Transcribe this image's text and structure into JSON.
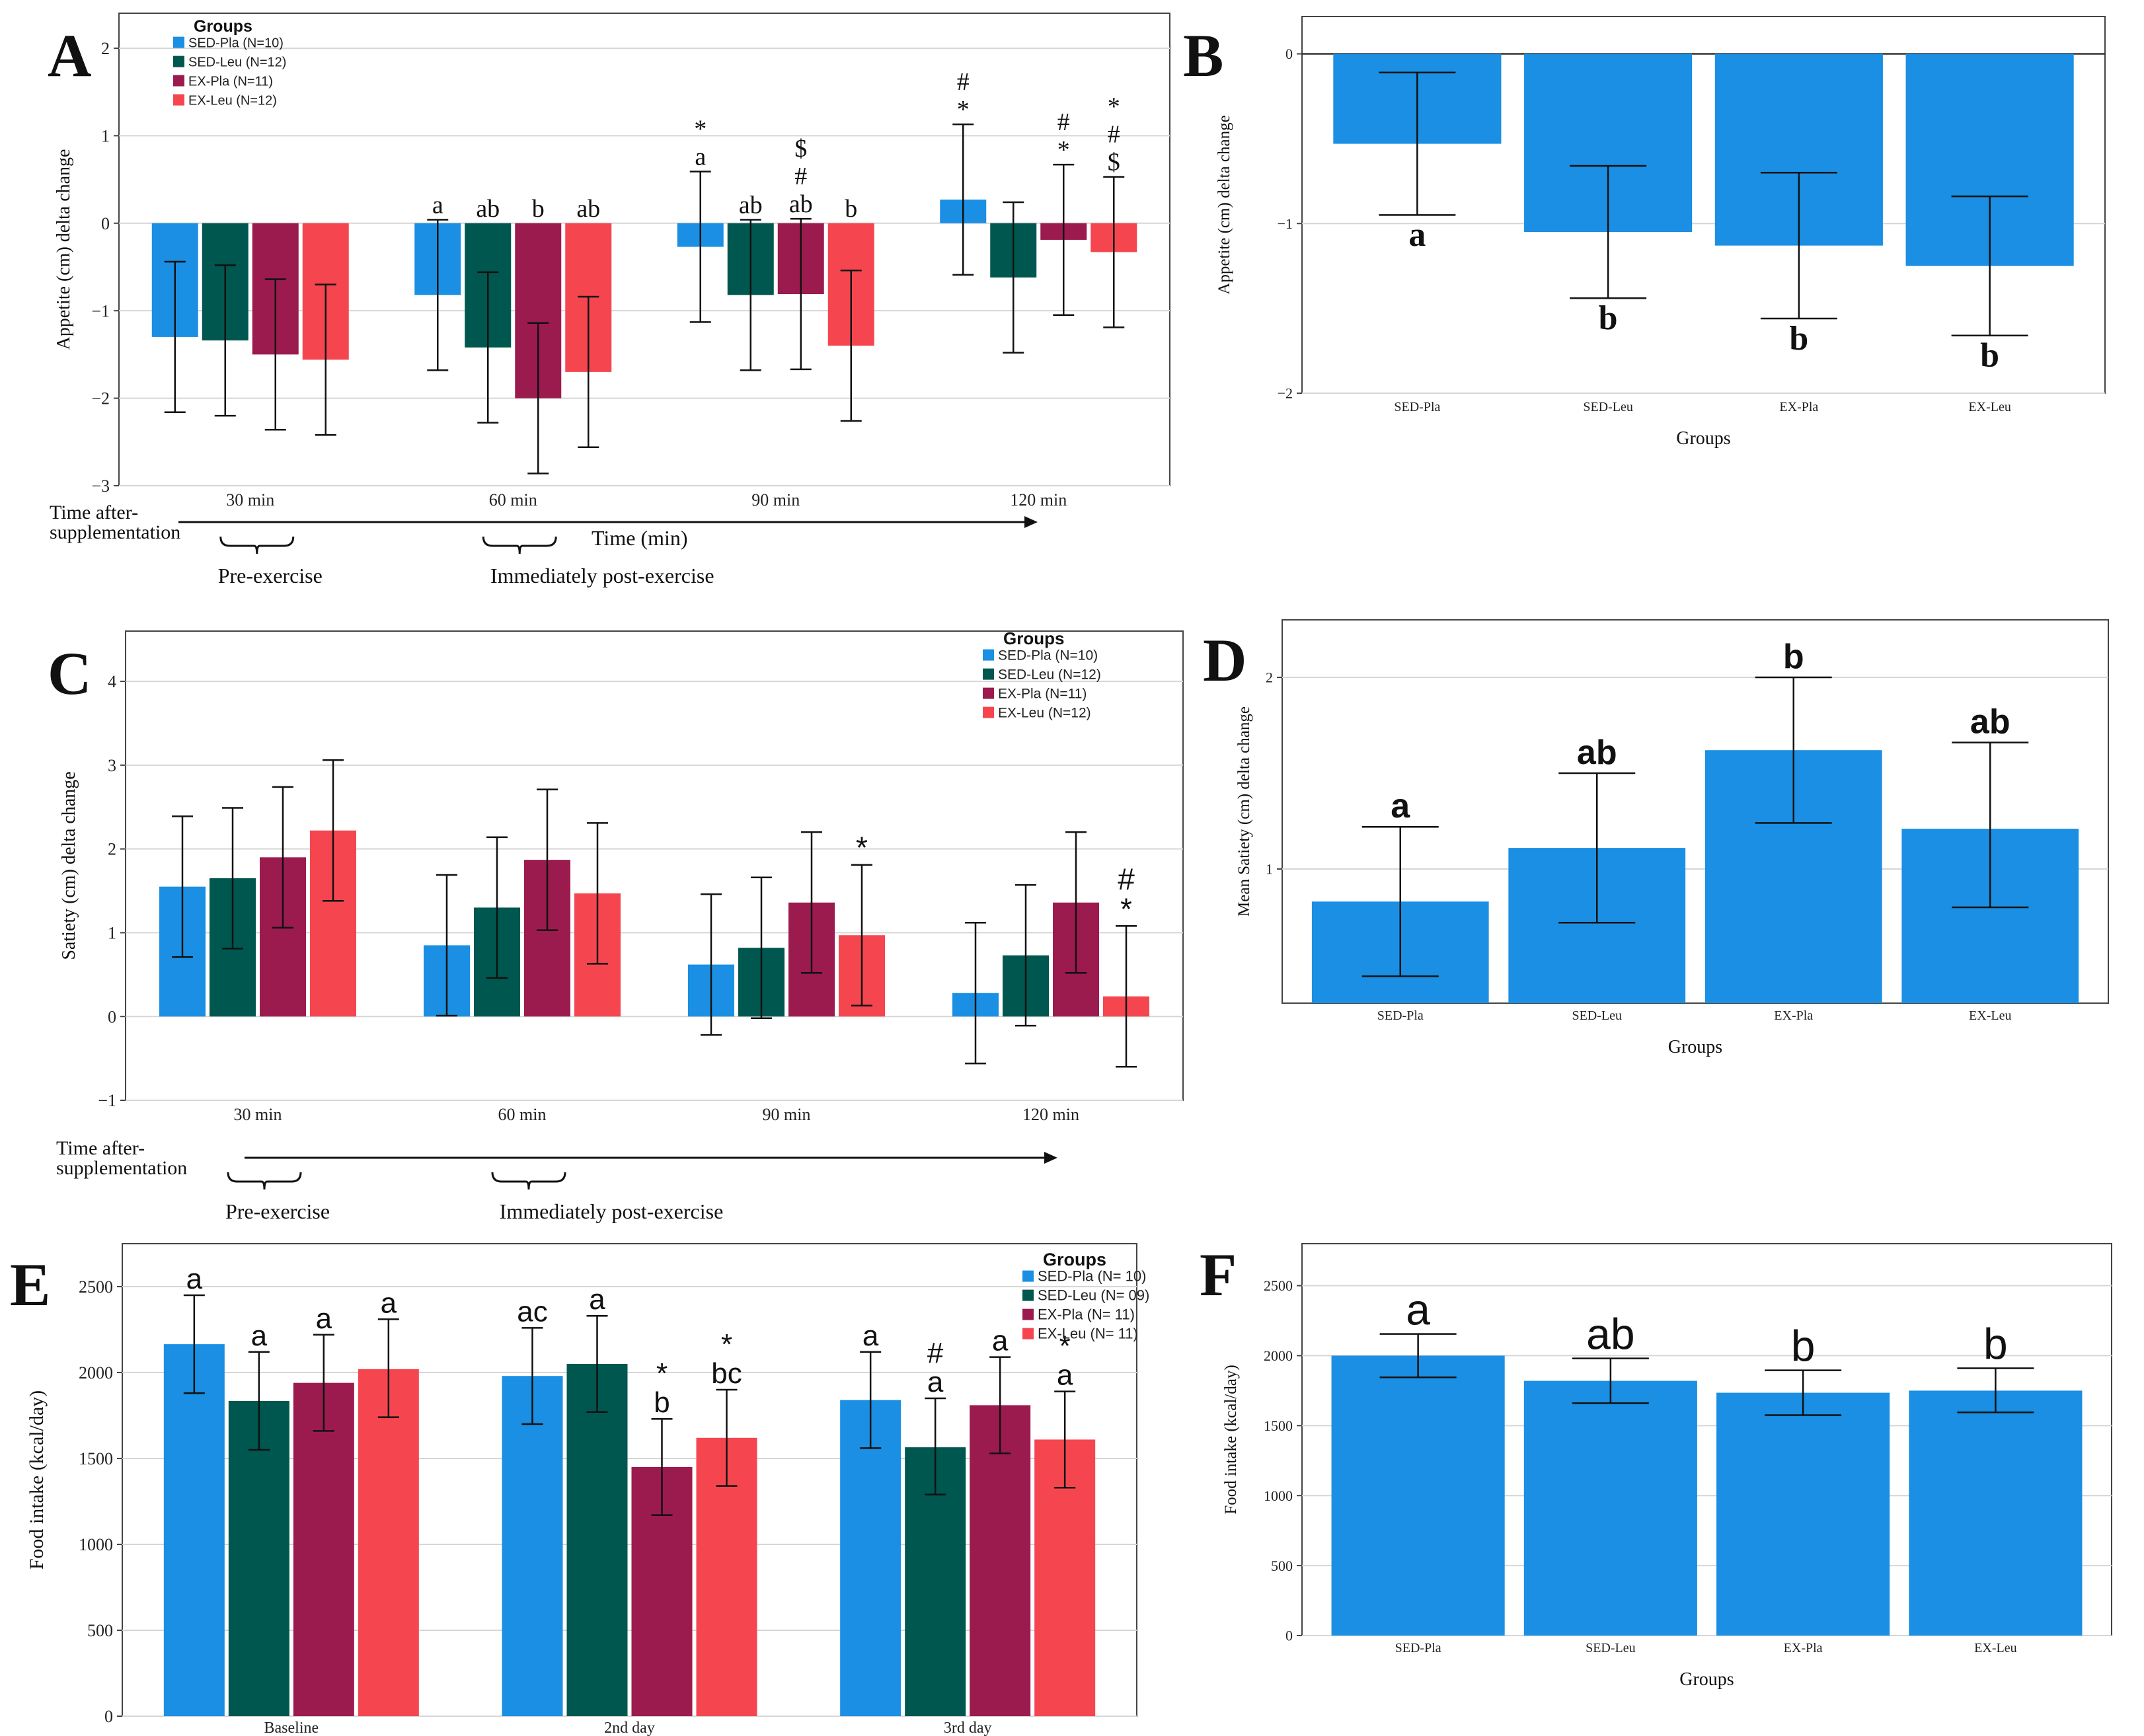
{
  "chart_data": [
    {
      "id": "A",
      "panel_letter": "A",
      "type": "bar",
      "grouped": true,
      "ylabel": "Appetite (cm) delta change",
      "ylim": [
        -3,
        2.4
      ],
      "yticks": [
        2,
        1,
        0,
        -1,
        -2,
        -3
      ],
      "ytick_labels": [
        "2",
        "1",
        "0",
        "−1",
        "−2",
        "−3"
      ],
      "categories": [
        "30 min",
        "60 min",
        "90 min",
        "120 min"
      ],
      "legend": {
        "title": "Groups",
        "position": "top-left",
        "entries": [
          "SED-Pla (N=10)",
          "SED-Leu (N=12)",
          "EX-Pla (N=11)",
          "EX-Leu (N=12)"
        ]
      },
      "series": [
        {
          "name": "SED-Pla (N=10)",
          "color": "#1a8fe3",
          "values": [
            -1.3,
            -0.82,
            -0.27,
            0.27
          ],
          "err_low": [
            -2.16,
            -1.68,
            -1.13,
            -0.59
          ],
          "err_high": [
            -0.44,
            0.04,
            0.59,
            1.13
          ]
        },
        {
          "name": "SED-Leu (N=12)",
          "color": "#00574f",
          "values": [
            -1.34,
            -1.42,
            -0.82,
            -0.62
          ],
          "err_low": [
            -2.2,
            -2.28,
            -1.68,
            -1.48
          ],
          "err_high": [
            -0.48,
            -0.56,
            0.04,
            0.24
          ]
        },
        {
          "name": "EX-Pla (N=11)",
          "color": "#9c1b4e",
          "values": [
            -1.5,
            -2.0,
            -0.81,
            -0.19
          ],
          "err_low": [
            -2.36,
            -2.86,
            -1.67,
            -1.05
          ],
          "err_high": [
            -0.64,
            -1.14,
            0.05,
            0.67
          ]
        },
        {
          "name": "EX-Leu (N=12)",
          "color": "#f5464f",
          "values": [
            -1.56,
            -1.7,
            -1.4,
            -0.33
          ],
          "err_low": [
            -2.42,
            -2.56,
            -2.26,
            -1.19
          ],
          "err_high": [
            -0.7,
            -0.84,
            -0.54,
            0.53
          ]
        }
      ],
      "annotations": [
        {
          "group": 1,
          "series": 0,
          "lines": [
            "a"
          ]
        },
        {
          "group": 1,
          "series": 1,
          "lines": [
            "ab"
          ]
        },
        {
          "group": 1,
          "series": 2,
          "lines": [
            "b"
          ]
        },
        {
          "group": 1,
          "series": 3,
          "lines": [
            "ab"
          ]
        },
        {
          "group": 2,
          "series": 0,
          "lines": [
            "*",
            "a"
          ]
        },
        {
          "group": 2,
          "series": 1,
          "lines": [
            "ab"
          ]
        },
        {
          "group": 2,
          "series": 2,
          "lines": [
            "$",
            "#",
            "ab"
          ]
        },
        {
          "group": 2,
          "series": 3,
          "lines": [
            "b"
          ]
        },
        {
          "group": 3,
          "series": 0,
          "lines": [
            "#",
            "*"
          ]
        },
        {
          "group": 3,
          "series": 2,
          "lines": [
            "#",
            "*"
          ]
        },
        {
          "group": 3,
          "series": 3,
          "lines": [
            "*",
            "#",
            "$"
          ]
        }
      ],
      "timeline": {
        "label_left": [
          "Time after-",
          "supplementation"
        ],
        "axis_label": "Time (min)",
        "phases": [
          {
            "label": "Pre-exercise",
            "group": 0
          },
          {
            "label": "Immediately post-exercise",
            "group": 1
          }
        ]
      }
    },
    {
      "id": "B",
      "panel_letter": "B",
      "type": "bar",
      "ylabel": "Appetite (cm) delta change",
      "xlabel": "Groups",
      "ylim": [
        -2,
        0.22
      ],
      "yticks": [
        0,
        -1,
        -2
      ],
      "ytick_labels": [
        "0",
        "−1",
        "−2"
      ],
      "categories": [
        "SED-Pla",
        "SED-Leu",
        "EX-Pla",
        "EX-Leu"
      ],
      "color": "#1a8fe3",
      "values": [
        -0.53,
        -1.05,
        -1.13,
        -1.25
      ],
      "err_low": [
        -0.95,
        -1.44,
        -1.56,
        -1.66
      ],
      "err_high": [
        -0.11,
        -0.66,
        -0.7,
        -0.84
      ],
      "letters": [
        "a",
        "b",
        "b",
        "b"
      ]
    },
    {
      "id": "C",
      "panel_letter": "C",
      "type": "bar",
      "grouped": true,
      "ylabel": "Satiety (cm) delta change",
      "ylim": [
        -1,
        4.6
      ],
      "yticks": [
        4,
        3,
        2,
        1,
        0,
        -1
      ],
      "ytick_labels": [
        "4",
        "3",
        "2",
        "1",
        "0",
        "−1"
      ],
      "categories": [
        "30 min",
        "60 min",
        "90 min",
        "120 min"
      ],
      "legend": {
        "title": "Groups",
        "position": "top-right",
        "entries": [
          "SED-Pla (N=10)",
          "SED-Leu (N=12)",
          "EX-Pla (N=11)",
          "EX-Leu (N=12)"
        ]
      },
      "series": [
        {
          "name": "SED-Pla (N=10)",
          "color": "#1a8fe3",
          "values": [
            1.55,
            0.85,
            0.62,
            0.28
          ],
          "err_low": [
            0.71,
            0.01,
            -0.22,
            -0.56
          ],
          "err_high": [
            2.39,
            1.69,
            1.46,
            1.12
          ]
        },
        {
          "name": "SED-Leu (N=12)",
          "color": "#00574f",
          "values": [
            1.65,
            1.3,
            0.82,
            0.73
          ],
          "err_low": [
            0.81,
            0.46,
            -0.02,
            -0.11
          ],
          "err_high": [
            2.49,
            2.14,
            1.66,
            1.57
          ]
        },
        {
          "name": "EX-Pla (N=11)",
          "color": "#9c1b4e",
          "values": [
            1.9,
            1.87,
            1.36,
            1.36
          ],
          "err_low": [
            1.06,
            1.03,
            0.52,
            0.52
          ],
          "err_high": [
            2.74,
            2.71,
            2.2,
            2.2
          ]
        },
        {
          "name": "EX-Leu (N=12)",
          "color": "#f5464f",
          "values": [
            2.22,
            1.47,
            0.97,
            0.24
          ],
          "err_low": [
            1.38,
            0.63,
            0.13,
            -0.6
          ],
          "err_high": [
            3.06,
            2.31,
            1.81,
            1.08
          ]
        }
      ],
      "annotations": [
        {
          "group": 2,
          "series": 3,
          "lines": [
            "*"
          ]
        },
        {
          "group": 3,
          "series": 3,
          "lines": [
            "#",
            "*"
          ]
        }
      ],
      "timeline": {
        "label_left": [
          "Time after-",
          "supplementation"
        ],
        "phases": [
          {
            "label": "Pre-exercise",
            "group": 0
          },
          {
            "label": "Immediately post-exercise",
            "group": 1
          }
        ]
      }
    },
    {
      "id": "D",
      "panel_letter": "D",
      "type": "bar",
      "ylabel": "Mean Satiety (cm) delta change",
      "xlabel": "Groups",
      "ylim": [
        0.3,
        2.3
      ],
      "yticks": [
        2,
        1
      ],
      "ytick_labels": [
        "2",
        "1"
      ],
      "categories": [
        "SED-Pla",
        "SED-Leu",
        "EX-Pla",
        "EX-Leu"
      ],
      "color": "#1a8fe3",
      "values": [
        0.83,
        1.11,
        1.62,
        1.21
      ],
      "err_low": [
        0.44,
        0.72,
        1.24,
        0.8
      ],
      "err_high": [
        1.22,
        1.5,
        2.0,
        1.66
      ],
      "letters": [
        "a",
        "ab",
        "b",
        "ab"
      ]
    },
    {
      "id": "E",
      "panel_letter": "E",
      "type": "bar",
      "grouped": true,
      "ylabel": "Food intake (kcal/day)",
      "ylim": [
        0,
        2750
      ],
      "yticks": [
        0,
        500,
        1000,
        1500,
        2000,
        2500
      ],
      "ytick_labels": [
        "0",
        "500",
        "1000",
        "1500",
        "2000",
        "2500"
      ],
      "categories": [
        "Baseline",
        "2nd day",
        "3rd day"
      ],
      "legend": {
        "title": "Groups",
        "position": "top-right",
        "entries": [
          "SED-Pla (N= 10)",
          "SED-Leu (N= 09)",
          "EX-Pla (N= 11)",
          "EX-Leu (N= 11)"
        ]
      },
      "series": [
        {
          "name": "SED-Pla (N= 10)",
          "color": "#1a8fe3",
          "values": [
            2165,
            1980,
            1840
          ],
          "err_low": [
            1880,
            1700,
            1560
          ],
          "err_high": [
            2450,
            2260,
            2120
          ]
        },
        {
          "name": "SED-Leu (N= 09)",
          "color": "#00574f",
          "values": [
            1835,
            2050,
            1565
          ],
          "err_low": [
            1550,
            1770,
            1290
          ],
          "err_high": [
            2120,
            2330,
            1850
          ]
        },
        {
          "name": "EX-Pla (N= 11)",
          "color": "#9c1b4e",
          "values": [
            1940,
            1450,
            1810
          ],
          "err_low": [
            1660,
            1170,
            1530
          ],
          "err_high": [
            2220,
            1730,
            2090
          ]
        },
        {
          "name": "EX-Leu (N= 11)",
          "color": "#f5464f",
          "values": [
            2020,
            1620,
            1610
          ],
          "err_low": [
            1740,
            1340,
            1330
          ],
          "err_high": [
            2310,
            1900,
            1890
          ]
        }
      ],
      "annotations": [
        {
          "group": 0,
          "series": 0,
          "lines": [
            "a"
          ]
        },
        {
          "group": 0,
          "series": 1,
          "lines": [
            "a"
          ]
        },
        {
          "group": 0,
          "series": 2,
          "lines": [
            "a"
          ]
        },
        {
          "group": 0,
          "series": 3,
          "lines": [
            "a"
          ]
        },
        {
          "group": 1,
          "series": 0,
          "lines": [
            "ac"
          ]
        },
        {
          "group": 1,
          "series": 1,
          "lines": [
            "a"
          ]
        },
        {
          "group": 1,
          "series": 2,
          "lines": [
            "*",
            "b"
          ]
        },
        {
          "group": 1,
          "series": 3,
          "lines": [
            "*",
            "bc"
          ]
        },
        {
          "group": 2,
          "series": 0,
          "lines": [
            "a"
          ]
        },
        {
          "group": 2,
          "series": 1,
          "lines": [
            "#",
            "a"
          ]
        },
        {
          "group": 2,
          "series": 2,
          "lines": [
            "a"
          ]
        },
        {
          "group": 2,
          "series": 3,
          "lines": [
            "*",
            "a"
          ]
        }
      ]
    },
    {
      "id": "F",
      "panel_letter": "F",
      "type": "bar",
      "ylabel": "Food intake (kcal/day)",
      "xlabel": "Groups",
      "ylim": [
        0,
        2800
      ],
      "yticks": [
        0,
        500,
        1000,
        1500,
        2000,
        2500
      ],
      "ytick_labels": [
        "0",
        "500",
        "1000",
        "1500",
        "2000",
        "2500"
      ],
      "categories": [
        "SED-Pla",
        "SED-Leu",
        "EX-Pla",
        "EX-Leu"
      ],
      "color": "#1a8fe3",
      "values": [
        2000,
        1820,
        1735,
        1750
      ],
      "err_low": [
        1845,
        1660,
        1575,
        1595
      ],
      "err_high": [
        2155,
        1980,
        1895,
        1910
      ],
      "letters": [
        "a",
        "ab",
        "b",
        "b"
      ]
    }
  ]
}
